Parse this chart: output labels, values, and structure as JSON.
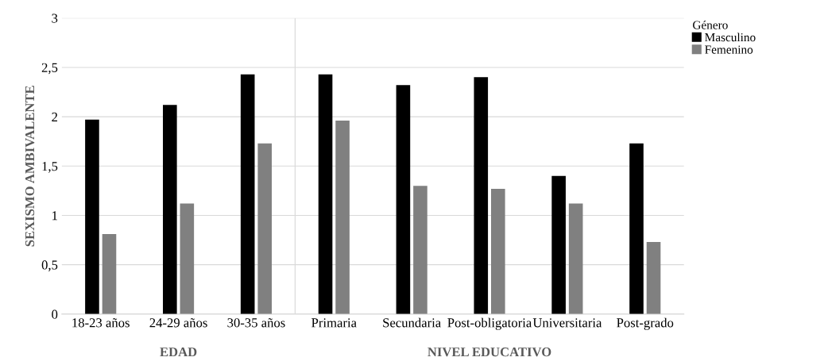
{
  "chart_data": {
    "type": "bar",
    "ylabel": "SEXISMO AMBIVALENTE",
    "legend_title": "Género",
    "categories": [
      "18-23 años",
      "24-29 años",
      "30-35 años",
      "Primaria",
      "Secundaria",
      "Post-obligatoria",
      "Universitaria",
      "Post-grado"
    ],
    "series": [
      {
        "name": "Masculino",
        "color": "#000000",
        "values": [
          1.97,
          2.12,
          2.43,
          2.43,
          2.32,
          2.4,
          1.4,
          1.73
        ]
      },
      {
        "name": "Femenino",
        "color": "#808080",
        "values": [
          0.81,
          1.12,
          1.73,
          1.96,
          1.3,
          1.27,
          1.12,
          0.73
        ]
      }
    ],
    "ylim": [
      0,
      3
    ],
    "yticks": [
      0,
      {
        "value": 0.5,
        "label": "0,5"
      },
      1,
      {
        "value": 1.5,
        "label": "1,5"
      },
      2,
      {
        "value": 2.5,
        "label": "2,5"
      },
      3
    ],
    "annotations": [
      "EDAD",
      "NIVEL EDUCATIVO"
    ],
    "grid": "y",
    "legend": "top right"
  }
}
